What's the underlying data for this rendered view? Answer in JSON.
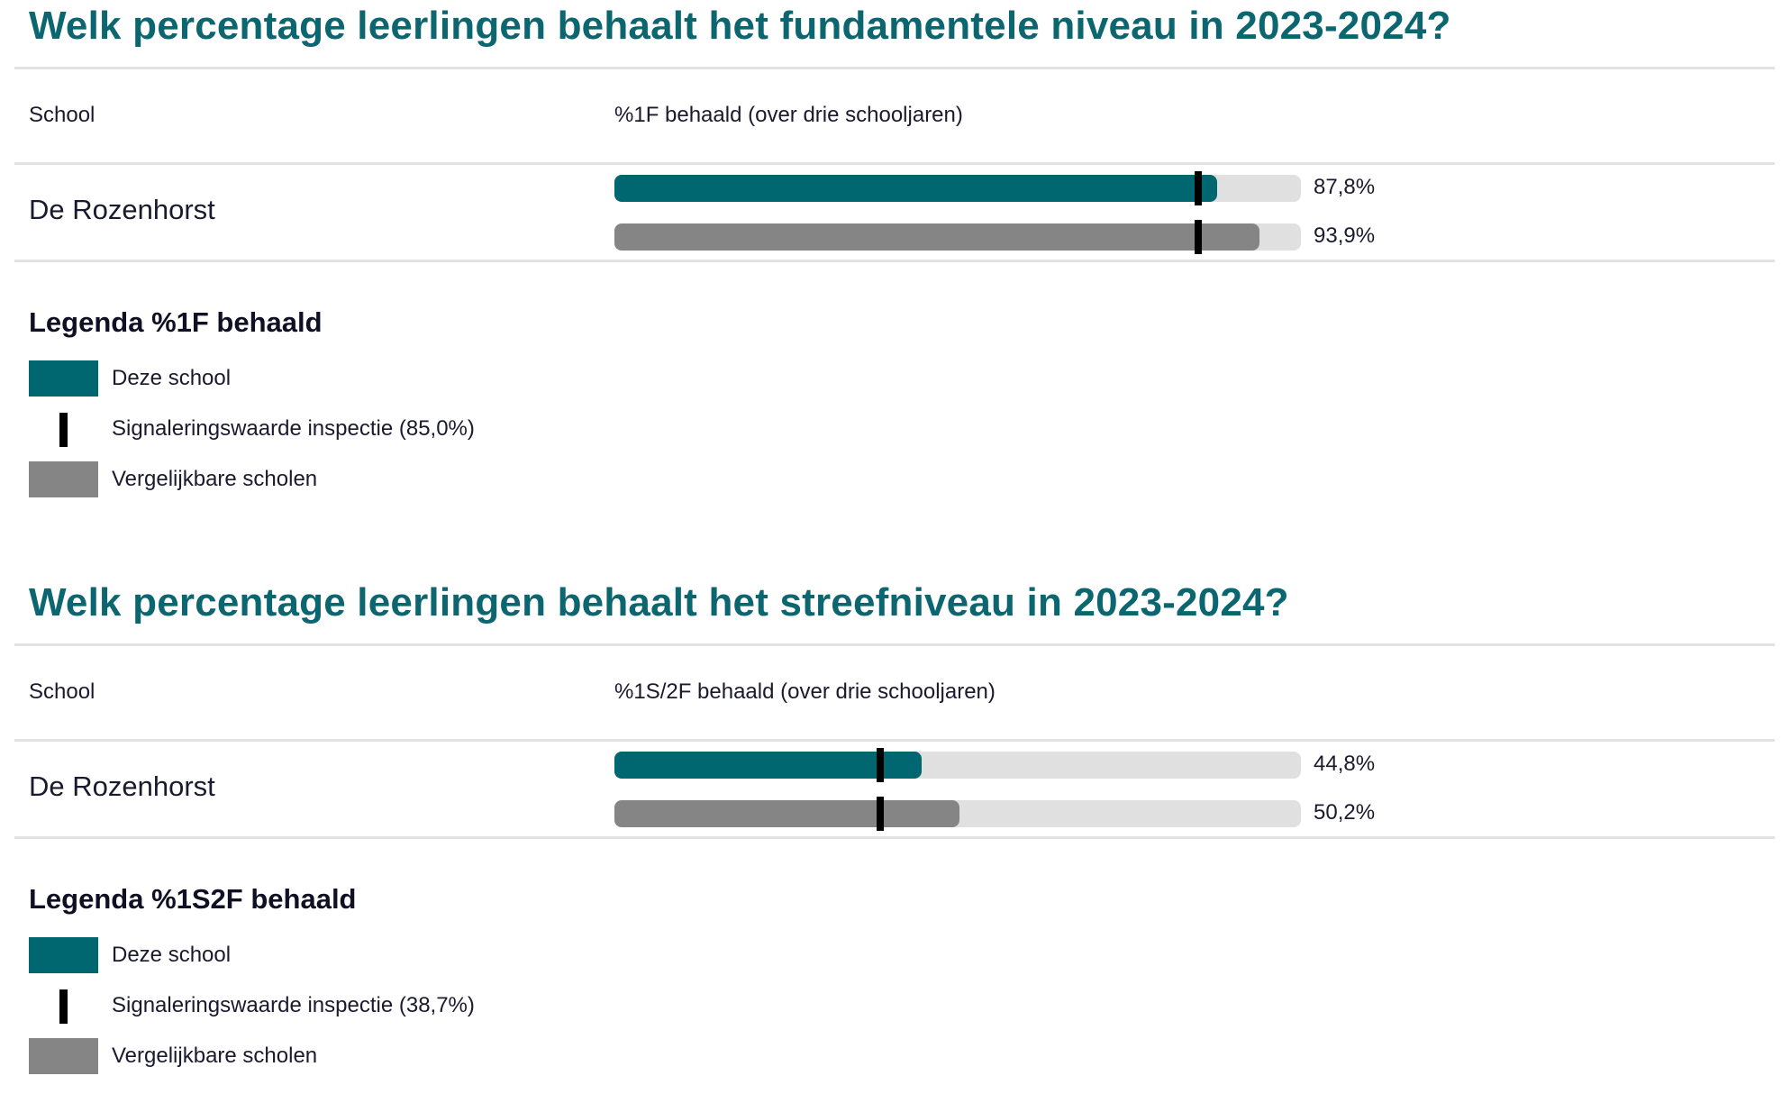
{
  "chart_data": [
    {
      "type": "bar",
      "orientation": "horizontal",
      "title": "Welk percentage leerlingen behaalt het fundamentele niveau in 2023-2024?",
      "column_headers": [
        "School",
        "%1F behaald (over drie schooljaren)"
      ],
      "categories": [
        "De Rozenhorst"
      ],
      "xlim": [
        0,
        100
      ],
      "series": [
        {
          "name": "Deze school",
          "values": [
            87.8
          ],
          "label": "87,8%",
          "color": "#006770"
        },
        {
          "name": "Vergelijkbare scholen",
          "values": [
            93.9
          ],
          "label": "93,9%",
          "color": "#858585"
        }
      ],
      "reference_line": {
        "name": "Signaleringswaarde inspectie",
        "value": 85.0
      },
      "legend": {
        "title": "Legenda %1F behaald",
        "items": [
          "Deze school",
          "Signaleringswaarde inspectie (85,0%)",
          "Vergelijkbare scholen"
        ]
      }
    },
    {
      "type": "bar",
      "orientation": "horizontal",
      "title": "Welk percentage leerlingen behaalt het streefniveau in 2023-2024?",
      "column_headers": [
        "School",
        "%1S/2F behaald (over drie schooljaren)"
      ],
      "categories": [
        "De Rozenhorst"
      ],
      "xlim": [
        0,
        100
      ],
      "series": [
        {
          "name": "Deze school",
          "values": [
            44.8
          ],
          "label": "44,8%",
          "color": "#006770"
        },
        {
          "name": "Vergelijkbare scholen",
          "values": [
            50.2
          ],
          "label": "50,2%",
          "color": "#858585"
        }
      ],
      "reference_line": {
        "name": "Signaleringswaarde inspectie",
        "value": 38.7
      },
      "legend": {
        "title": "Legenda %1S2F behaald",
        "items": [
          "Deze school",
          "Signaleringswaarde inspectie (38,7%)",
          "Vergelijkbare scholen"
        ]
      }
    }
  ],
  "colors": {
    "title": "#0b6670",
    "school_bar": "#006770",
    "compare_bar": "#858585",
    "track": "#e0e0e0",
    "marker": "#000000"
  }
}
